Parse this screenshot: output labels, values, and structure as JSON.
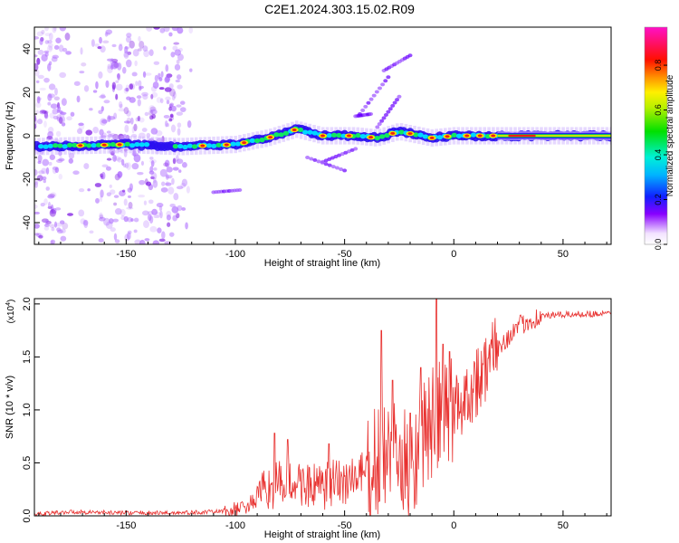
{
  "title": "C2E1.2024.303.15.02.R09",
  "chart_data": [
    {
      "type": "heatmap",
      "xlabel": "Height of straight line (km)",
      "ylabel": "Frequency (Hz)",
      "xlim": [
        -192,
        72
      ],
      "ylim": [
        -50,
        50
      ],
      "xticks": [
        -150,
        -100,
        -50,
        0,
        50
      ],
      "yticks": [
        -40,
        -20,
        0,
        20,
        40
      ],
      "colorbar": {
        "label": "Normalized spectral amplitude",
        "range": [
          0,
          0.97
        ],
        "ticks": [
          0.0,
          0.2,
          0.4,
          0.6,
          0.8
        ],
        "colormap": "rainbow (purple-blue-cyan-green-yellow-red-magenta)"
      },
      "ridge": {
        "description": "main Doppler ridge",
        "points": [
          [
            -192,
            -5
          ],
          [
            -150,
            -4
          ],
          [
            -125,
            -5
          ],
          [
            -100,
            -4
          ],
          [
            -85,
            -1
          ],
          [
            -72,
            3
          ],
          [
            -60,
            0
          ],
          [
            -45,
            0
          ],
          [
            -35,
            -1
          ],
          [
            -25,
            2
          ],
          [
            -10,
            -1
          ],
          [
            0,
            0
          ],
          [
            20,
            0
          ],
          [
            72,
            0
          ]
        ]
      }
    },
    {
      "type": "line",
      "xlabel": "Height of straight line (km)",
      "ylabel": "SNR (10 * v/v)",
      "y_multiplier": "(x10^4)",
      "xlim": [
        -192,
        72
      ],
      "ylim": [
        0,
        2.05
      ],
      "xticks": [
        -150,
        -100,
        -50,
        0,
        50
      ],
      "yticks": [
        0.0,
        0.5,
        1.0,
        1.5,
        2.0
      ],
      "color": "#e8302e",
      "series_x": [
        -192,
        -175,
        -150,
        -125,
        -110,
        -100,
        -95,
        -90,
        -85,
        -80,
        -75,
        -70,
        -65,
        -60,
        -55,
        -50,
        -45,
        -40,
        -35,
        -30,
        -25,
        -20,
        -15,
        -12,
        -8,
        -5,
        0,
        5,
        10,
        15,
        20,
        25,
        30,
        35,
        40,
        50,
        60,
        72
      ],
      "series_y": [
        0.02,
        0.04,
        0.03,
        0.03,
        0.04,
        0.06,
        0.1,
        0.16,
        0.28,
        0.32,
        0.34,
        0.33,
        0.3,
        0.28,
        0.32,
        0.36,
        0.38,
        0.42,
        0.55,
        0.62,
        0.55,
        0.5,
        0.78,
        0.88,
        0.95,
        1.0,
        1.05,
        1.15,
        1.3,
        1.45,
        1.6,
        1.7,
        1.8,
        1.86,
        1.89,
        1.9,
        1.91,
        1.91
      ],
      "spikes": [
        [
          -82,
          0.78
        ],
        [
          -76,
          0.72
        ],
        [
          -57,
          0.68
        ],
        [
          -33,
          1.75
        ],
        [
          -28,
          1.28
        ],
        [
          -20,
          0.97
        ],
        [
          -15,
          1.4
        ],
        [
          -8,
          2.05
        ],
        [
          -5,
          1.62
        ],
        [
          -2,
          1.55
        ]
      ]
    }
  ]
}
